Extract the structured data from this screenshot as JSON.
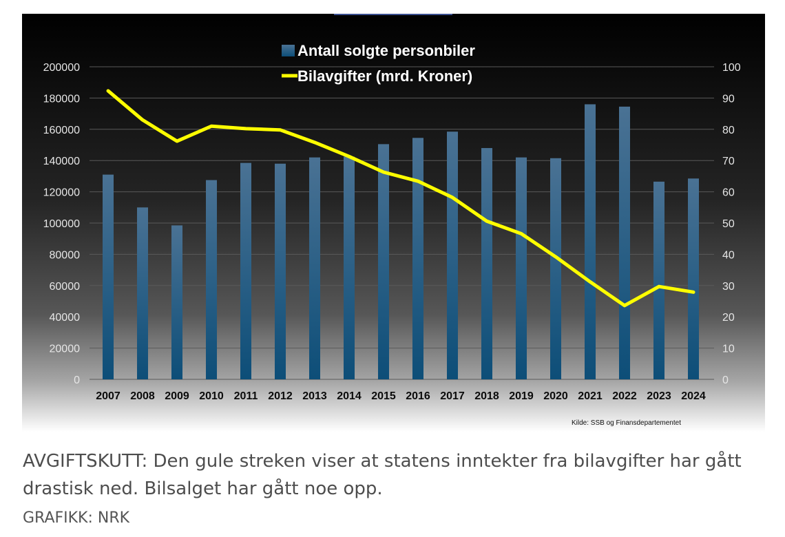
{
  "caption": {
    "text": "AVGIFTSKUTT: Den gule streken viser at statens inntekter fra bilavgifter har gått drastisk ned. Bilsalget har gått noe opp.",
    "credit": "GRAFIKK: NRK"
  },
  "chart_data": {
    "type": "bar",
    "categories": [
      "2007",
      "2008",
      "2009",
      "2010",
      "2011",
      "2012",
      "2013",
      "2014",
      "2015",
      "2016",
      "2017",
      "2018",
      "2019",
      "2020",
      "2021",
      "2022",
      "2023",
      "2024"
    ],
    "series": [
      {
        "name": "Antall solgte personbiler",
        "type": "bar",
        "axis": "left",
        "values": [
          131000,
          110000,
          98500,
          127500,
          138500,
          138000,
          142000,
          142500,
          150500,
          154500,
          158500,
          148000,
          142000,
          141500,
          176000,
          174500,
          126500,
          128500
        ]
      },
      {
        "name": "Bilavgifter (mrd. Kroner)",
        "type": "line",
        "axis": "right",
        "values": [
          92.3,
          83.0,
          76.2,
          81.0,
          80.2,
          79.8,
          75.8,
          71.3,
          66.3,
          63.4,
          58.2,
          50.6,
          46.6,
          39.2,
          31.2,
          23.6,
          29.7,
          27.9
        ]
      }
    ],
    "y_left": {
      "min": 0,
      "max": 200000,
      "ticks": [
        "0",
        "20000",
        "40000",
        "60000",
        "80000",
        "100000",
        "120000",
        "140000",
        "160000",
        "180000",
        "200000"
      ]
    },
    "y_right": {
      "min": 0,
      "max": 100,
      "ticks": [
        "0",
        "10",
        "20",
        "30",
        "40",
        "50",
        "60",
        "70",
        "80",
        "90",
        "100"
      ]
    },
    "grid": true,
    "legend_position": "top-center",
    "source_note": "Kilde: SSB og Finansdepartementet",
    "colors": {
      "background_top": "#000000",
      "background_bottom": "#ffffff",
      "bar_top": "#4a7294",
      "bar_bottom": "#0d4e78",
      "line": "#ffff00",
      "grid": "#5a5a5a"
    }
  }
}
